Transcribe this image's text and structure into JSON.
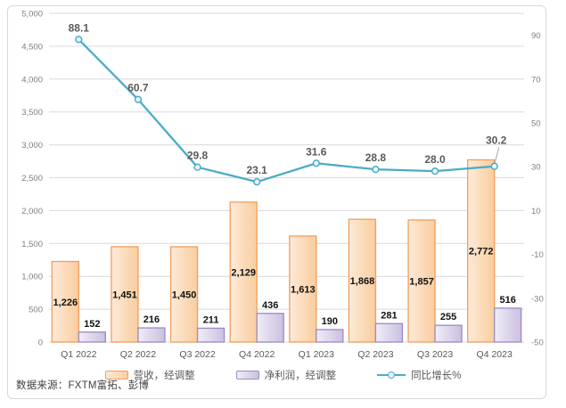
{
  "chart_data": {
    "type": "bar",
    "subtype": "combo-bar-line",
    "title": "",
    "categories": [
      "Q1 2022",
      "Q2 2022",
      "Q3 2022",
      "Q4 2022",
      "Q1 2023",
      "Q2 2023",
      "Q3 2023",
      "Q4 2023"
    ],
    "series": [
      {
        "name": "营收，经调整",
        "type": "bar",
        "axis": "left",
        "values": [
          1226,
          1451,
          1450,
          2129,
          1613,
          1868,
          1857,
          2772
        ],
        "labels": [
          "1,226",
          "1,451",
          "1,450",
          "2,129",
          "1,613",
          "1,868",
          "1,857",
          "2,772"
        ]
      },
      {
        "name": "净利润，经调整",
        "type": "bar",
        "axis": "left",
        "values": [
          152,
          216,
          211,
          436,
          190,
          281,
          255,
          516
        ],
        "labels": [
          "152",
          "216",
          "211",
          "436",
          "190",
          "281",
          "255",
          "516"
        ]
      },
      {
        "name": "同比增长%",
        "type": "line",
        "axis": "right",
        "values": [
          88.1,
          60.7,
          29.8,
          23.1,
          31.6,
          28.8,
          28.0,
          30.2
        ],
        "labels": [
          "88.1",
          "60.7",
          "29.8",
          "23.1",
          "31.6",
          "28.8",
          "28.0",
          "30.2"
        ]
      }
    ],
    "left_axis": {
      "min": 0,
      "max": 5000,
      "step": 500,
      "tick_labels": [
        "0",
        "500",
        "1,000",
        "1,500",
        "2,000",
        "2,500",
        "3,000",
        "3,500",
        "4,000",
        "4,500",
        "5,000"
      ]
    },
    "right_axis": {
      "min": -50,
      "max": 100,
      "step": 20,
      "tick_values": [
        -50,
        -30,
        -10,
        10,
        30,
        50,
        70,
        90
      ],
      "tick_labels": [
        "-50",
        "-30",
        "-10",
        "10",
        "30",
        "50",
        "70",
        "90"
      ]
    },
    "grid": true,
    "legend_position": "bottom",
    "colors": {
      "orange_border": "#F09E5E",
      "orange_fill_light": "#FDEAD8",
      "orange_fill_dark": "#F9CD9F",
      "purple_border": "#9C8BC0",
      "purple_fill_light": "#F0EDF7",
      "purple_fill_dark": "#CBBFE1",
      "line": "#4BACC6",
      "marker_fill": "#EAF5FA",
      "grid": "#D9D9D9",
      "axis_text": "#7F7F7F",
      "line_label_text": "#595959",
      "leader": "#A6A6A6"
    }
  },
  "source_note": {
    "text": "数据来源：FXTM富拓、彭博"
  }
}
